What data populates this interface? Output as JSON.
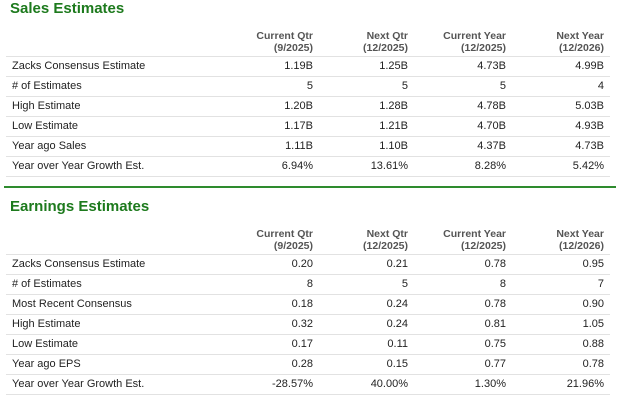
{
  "sections": [
    {
      "title": "Sales Estimates",
      "columns": [
        {
          "label": "Current Qtr",
          "period": "(9/2025)"
        },
        {
          "label": "Next Qtr",
          "period": "(12/2025)"
        },
        {
          "label": "Current Year",
          "period": "(12/2025)"
        },
        {
          "label": "Next Year",
          "period": "(12/2026)"
        }
      ],
      "rows": [
        {
          "label": "Zacks Consensus Estimate",
          "values": [
            "1.19B",
            "1.25B",
            "4.73B",
            "4.99B"
          ]
        },
        {
          "label": "# of Estimates",
          "values": [
            "5",
            "5",
            "5",
            "4"
          ]
        },
        {
          "label": "High Estimate",
          "values": [
            "1.20B",
            "1.28B",
            "4.78B",
            "5.03B"
          ]
        },
        {
          "label": "Low Estimate",
          "values": [
            "1.17B",
            "1.21B",
            "4.70B",
            "4.93B"
          ]
        },
        {
          "label": "Year ago Sales",
          "values": [
            "1.11B",
            "1.10B",
            "4.37B",
            "4.73B"
          ]
        },
        {
          "label": "Year over Year Growth Est.",
          "values": [
            "6.94%",
            "13.61%",
            "8.28%",
            "5.42%"
          ]
        }
      ]
    },
    {
      "title": "Earnings Estimates",
      "columns": [
        {
          "label": "Current Qtr",
          "period": "(9/2025)"
        },
        {
          "label": "Next Qtr",
          "period": "(12/2025)"
        },
        {
          "label": "Current Year",
          "period": "(12/2025)"
        },
        {
          "label": "Next Year",
          "period": "(12/2026)"
        }
      ],
      "rows": [
        {
          "label": "Zacks Consensus Estimate",
          "values": [
            "0.20",
            "0.21",
            "0.78",
            "0.95"
          ]
        },
        {
          "label": "# of Estimates",
          "values": [
            "8",
            "5",
            "8",
            "7"
          ]
        },
        {
          "label": "Most Recent Consensus",
          "values": [
            "0.18",
            "0.24",
            "0.78",
            "0.90"
          ]
        },
        {
          "label": "High Estimate",
          "values": [
            "0.32",
            "0.24",
            "0.81",
            "1.05"
          ]
        },
        {
          "label": "Low Estimate",
          "values": [
            "0.17",
            "0.11",
            "0.75",
            "0.88"
          ]
        },
        {
          "label": "Year ago EPS",
          "values": [
            "0.28",
            "0.15",
            "0.77",
            "0.78"
          ]
        },
        {
          "label": "Year over Year Growth Est.",
          "values": [
            "-28.57%",
            "40.00%",
            "1.30%",
            "21.96%"
          ]
        }
      ]
    }
  ]
}
